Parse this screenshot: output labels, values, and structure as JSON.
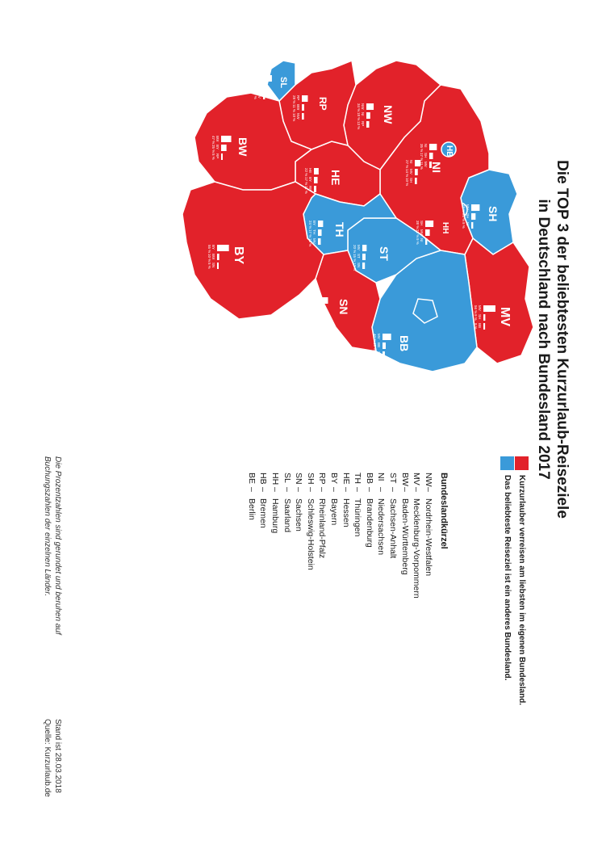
{
  "title_line1": "Die TOP 3 der beliebtesten Kurzurlaub-Reiseziele",
  "title_line2": "in Deutschland nach Bundesland 2017",
  "colors": {
    "home": "#e2222a",
    "other": "#3a9ad9"
  },
  "legend": {
    "heading": "Bundeslandkürzel",
    "items": [
      {
        "abbr": "NW",
        "name": "Nordrhein-Westfalen"
      },
      {
        "abbr": "MV",
        "name": "Mecklenburg-Vorpommern"
      },
      {
        "abbr": "BW",
        "name": "Baden-Württemberg"
      },
      {
        "abbr": "ST",
        "name": "Sachsen-Anhalt"
      },
      {
        "abbr": "NI",
        "name": "Niedersachsen"
      },
      {
        "abbr": "BB",
        "name": "Brandenburg"
      },
      {
        "abbr": "TH",
        "name": "Thüringen"
      },
      {
        "abbr": "HE",
        "name": "Hessen"
      },
      {
        "abbr": "BY",
        "name": "Bayern"
      },
      {
        "abbr": "RP",
        "name": "Rheinland-Pfalz"
      },
      {
        "abbr": "SH",
        "name": "Schleswig-Holstein"
      },
      {
        "abbr": "SN",
        "name": "Sachsen"
      },
      {
        "abbr": "SL",
        "name": "Saarland"
      },
      {
        "abbr": "HH",
        "name": "Hamburg"
      },
      {
        "abbr": "HB",
        "name": "Bremen"
      },
      {
        "abbr": "BE",
        "name": "Berlin"
      }
    ]
  },
  "key": {
    "home": "Kurzurlauber verreisen am liebsten im eigenen Bundesland.",
    "other": "Das beliebteste Reiseziel ist ein anderes Bundesland."
  },
  "note_line1": "Die Prozentzahlen sind gerundet und beruhen auf",
  "note_line2": "Buchungszahlen der einzelnen Länder.",
  "date": "Stand ist 28.03.2018",
  "source": "Quelle: Kurzurlaub.de",
  "states": [
    {
      "abbr": "SH",
      "home": false,
      "top": [
        {
          "dest": "MV",
          "pct": "39 %"
        },
        {
          "dest": "SH",
          "pct": "20 %"
        },
        {
          "dest": "NI",
          "pct": "9 %"
        }
      ]
    },
    {
      "abbr": "NI",
      "home": true,
      "top": [
        {
          "dest": "NI",
          "pct": "27 %"
        },
        {
          "dest": "MV",
          "pct": "14 %"
        },
        {
          "dest": "SH",
          "pct": "10 %"
        }
      ]
    },
    {
      "abbr": "NW",
      "home": true,
      "top": [
        {
          "dest": "NW",
          "pct": "34 %"
        },
        {
          "dest": "NI",
          "pct": "18 %"
        },
        {
          "dest": "RP",
          "pct": "13 %"
        }
      ]
    },
    {
      "abbr": "HE",
      "home": true,
      "top": [
        {
          "dest": "HE",
          "pct": "22 %"
        },
        {
          "dest": "BY",
          "pct": "17 %"
        },
        {
          "dest": "RP",
          "pct": "11 %"
        }
      ]
    },
    {
      "abbr": "RP",
      "home": true,
      "top": [
        {
          "dest": "RP",
          "pct": "28 %"
        },
        {
          "dest": "BW",
          "pct": "11 %"
        },
        {
          "dest": "NW",
          "pct": "10 %"
        }
      ]
    },
    {
      "abbr": "SL",
      "home": false,
      "top": [
        {
          "dest": "RP",
          "pct": "41 %"
        },
        {
          "dest": "BY",
          "pct": "13 %"
        },
        {
          "dest": "MV",
          "pct": "9 %"
        }
      ]
    },
    {
      "abbr": "BW",
      "home": true,
      "top": [
        {
          "dest": "BW",
          "pct": "47 %"
        },
        {
          "dest": "BY",
          "pct": "25 %"
        },
        {
          "dest": "RP",
          "pct": "5 %"
        }
      ]
    },
    {
      "abbr": "BY",
      "home": true,
      "top": [
        {
          "dest": "BY",
          "pct": "55 %"
        },
        {
          "dest": "BW",
          "pct": "10 %"
        },
        {
          "dest": "SN",
          "pct": "5 %"
        }
      ]
    },
    {
      "abbr": "TH",
      "home": false,
      "top": [
        {
          "dest": "BY",
          "pct": "24 %"
        },
        {
          "dest": "TH",
          "pct": "17 %"
        },
        {
          "dest": "MV",
          "pct": "13 %"
        }
      ]
    },
    {
      "abbr": "ST",
      "home": false,
      "top": [
        {
          "dest": "MV",
          "pct": "20 %"
        },
        {
          "dest": "ST",
          "pct": "15 %"
        },
        {
          "dest": "SN",
          "pct": "12 %"
        }
      ]
    },
    {
      "abbr": "SN",
      "home": true,
      "top": [
        {
          "dest": "SN",
          "pct": "28 %"
        },
        {
          "dest": "MV",
          "pct": "15 %"
        },
        {
          "dest": "BY",
          "pct": "12 %"
        }
      ]
    },
    {
      "abbr": "MV",
      "home": true,
      "top": [
        {
          "dest": "MV",
          "pct": "56 %"
        },
        {
          "dest": "SH",
          "pct": "9 %"
        },
        {
          "dest": "BB",
          "pct": "8 %"
        }
      ]
    },
    {
      "abbr": "BB",
      "home": false,
      "top": [
        {
          "dest": "MV",
          "pct": "40 %"
        },
        {
          "dest": "BB",
          "pct": "15 %"
        },
        {
          "dest": "SN",
          "pct": "11 %"
        }
      ]
    },
    {
      "abbr": "BE",
      "home": false,
      "top": [
        {
          "dest": "MV",
          "pct": "44 %"
        },
        {
          "dest": "BB",
          "pct": "21 %"
        },
        {
          "dest": "SN",
          "pct": "12 %"
        }
      ]
    },
    {
      "abbr": "HH",
      "home": false,
      "top": [
        {
          "dest": "SH",
          "pct": "38 %"
        },
        {
          "dest": "MV",
          "pct": "21 %"
        },
        {
          "dest": "NI",
          "pct": "9 %"
        }
      ]
    },
    {
      "abbr": "HB",
      "home": false,
      "top": [
        {
          "dest": "NI",
          "pct": "35 %"
        },
        {
          "dest": "SH",
          "pct": "17 %"
        },
        {
          "dest": "MV",
          "pct": "11 %"
        }
      ]
    }
  ]
}
